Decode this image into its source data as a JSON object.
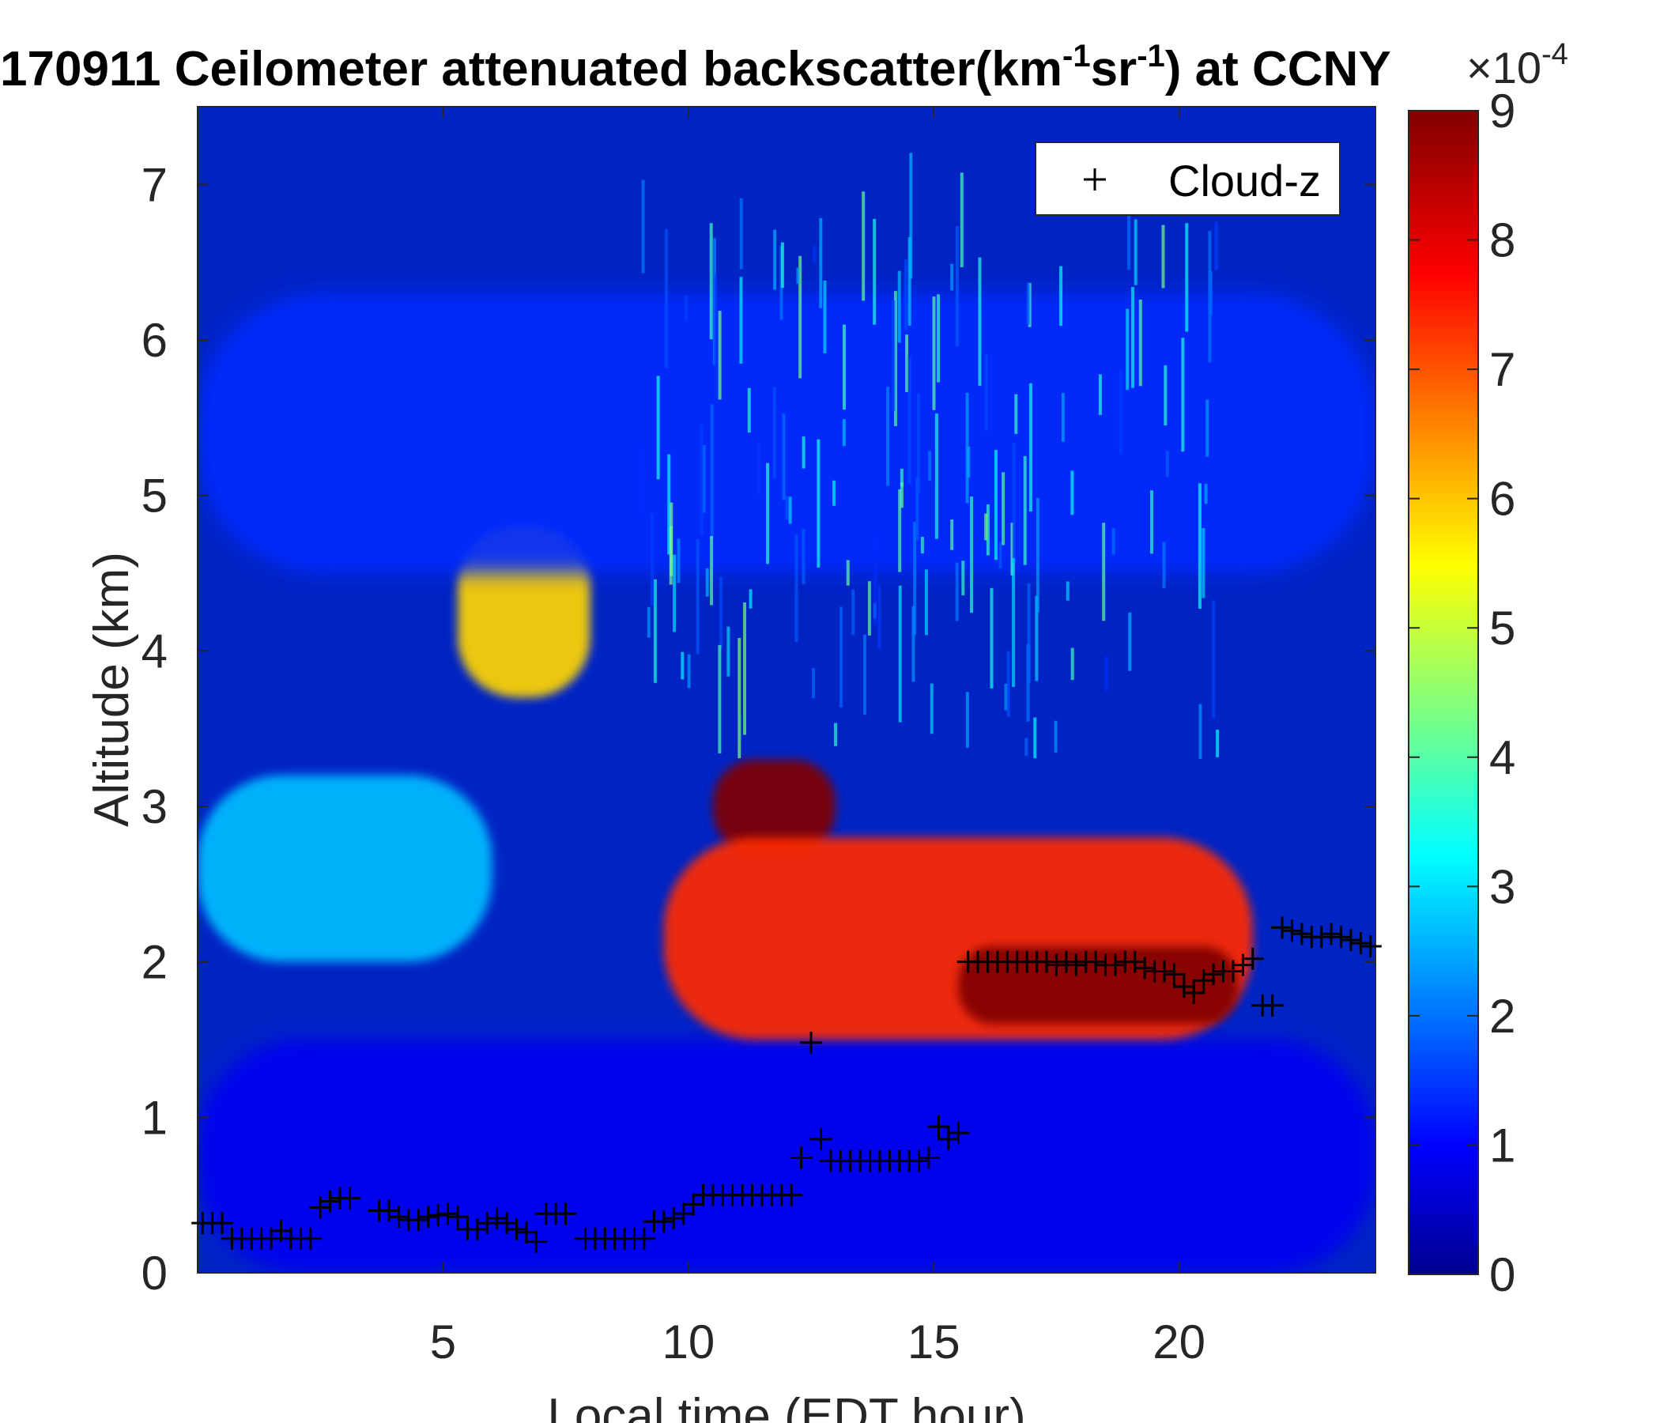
{
  "chart_data": {
    "type": "heatmap",
    "title": "170911 Ceilometer attenuated backscatter(km",
    "title_sup1": "-1",
    "title_mid": "sr",
    "title_sup2": "-1",
    "title_end": ") at CCNY",
    "xlabel": "Local time (EDT hour)",
    "ylabel": "Altitude (km)",
    "xlim": [
      0,
      24
    ],
    "ylim": [
      0,
      7.5
    ],
    "xticks": [
      5,
      10,
      15,
      20
    ],
    "yticks": [
      0,
      1,
      2,
      3,
      4,
      5,
      6,
      7
    ],
    "colorbar": {
      "colormap": "jet",
      "range": [
        0,
        9
      ],
      "ticks": [
        0,
        1,
        2,
        3,
        4,
        5,
        6,
        7,
        8,
        9
      ],
      "exponent_base": "×10",
      "exponent_power": "-4"
    },
    "legend": {
      "placement": "top-right",
      "entries": [
        {
          "marker": "+",
          "label": "Cloud-z",
          "color": "#000000"
        }
      ]
    },
    "features": [
      {
        "name": "aerosol layer",
        "x_range": [
          0,
          24
        ],
        "alt_km": [
          0,
          1.5
        ],
        "value": 1.0
      },
      {
        "name": "elevated layer",
        "x_range": [
          0,
          6
        ],
        "alt_km": [
          2.0,
          3.2
        ],
        "value": 2.8
      },
      {
        "name": "thick cloud",
        "x_range": [
          10.5,
          13
        ],
        "alt_km": [
          2.7,
          3.3
        ],
        "value": 9.0
      },
      {
        "name": "cloud band",
        "x_range": [
          9.5,
          21.5
        ],
        "alt_km": [
          1.5,
          2.8
        ],
        "value": 7.5
      },
      {
        "name": "cloud core",
        "x_range": [
          15.5,
          21.2
        ],
        "alt_km": [
          1.6,
          2.1
        ],
        "value": 9.0
      },
      {
        "name": "mid-level cloud",
        "x_range": [
          5.3,
          8.0
        ],
        "alt_km": [
          3.7,
          4.8
        ],
        "value": 6.0
      },
      {
        "name": "upper layer",
        "x_range": [
          0,
          24
        ],
        "alt_km": [
          4.5,
          6.3
        ],
        "value": 1.5
      }
    ],
    "series": [
      {
        "name": "Cloud-z",
        "marker": "+",
        "points": [
          [
            0.1,
            0.32
          ],
          [
            0.3,
            0.32
          ],
          [
            0.5,
            0.32
          ],
          [
            0.7,
            0.22
          ],
          [
            0.9,
            0.22
          ],
          [
            1.1,
            0.22
          ],
          [
            1.3,
            0.22
          ],
          [
            1.5,
            0.22
          ],
          [
            1.7,
            0.27
          ],
          [
            1.9,
            0.22
          ],
          [
            2.1,
            0.22
          ],
          [
            2.3,
            0.22
          ],
          [
            2.5,
            0.42
          ],
          [
            2.7,
            0.46
          ],
          [
            2.9,
            0.48
          ],
          [
            3.1,
            0.48
          ],
          [
            3.7,
            0.4
          ],
          [
            3.9,
            0.4
          ],
          [
            4.1,
            0.36
          ],
          [
            4.3,
            0.34
          ],
          [
            4.5,
            0.34
          ],
          [
            4.7,
            0.36
          ],
          [
            4.9,
            0.37
          ],
          [
            5.1,
            0.38
          ],
          [
            5.3,
            0.36
          ],
          [
            5.5,
            0.28
          ],
          [
            5.7,
            0.28
          ],
          [
            5.9,
            0.32
          ],
          [
            6.1,
            0.35
          ],
          [
            6.3,
            0.32
          ],
          [
            6.5,
            0.28
          ],
          [
            6.7,
            0.26
          ],
          [
            6.9,
            0.2
          ],
          [
            7.1,
            0.38
          ],
          [
            7.3,
            0.38
          ],
          [
            7.5,
            0.38
          ],
          [
            7.9,
            0.22
          ],
          [
            8.1,
            0.22
          ],
          [
            8.3,
            0.22
          ],
          [
            8.5,
            0.22
          ],
          [
            8.7,
            0.22
          ],
          [
            8.9,
            0.22
          ],
          [
            9.1,
            0.22
          ],
          [
            9.3,
            0.33
          ],
          [
            9.5,
            0.33
          ],
          [
            9.7,
            0.35
          ],
          [
            9.9,
            0.38
          ],
          [
            10.1,
            0.44
          ],
          [
            10.3,
            0.5
          ],
          [
            10.5,
            0.5
          ],
          [
            10.7,
            0.5
          ],
          [
            10.9,
            0.5
          ],
          [
            11.1,
            0.5
          ],
          [
            11.3,
            0.5
          ],
          [
            11.5,
            0.5
          ],
          [
            11.7,
            0.5
          ],
          [
            11.9,
            0.5
          ],
          [
            12.1,
            0.5
          ],
          [
            12.3,
            0.74
          ],
          [
            12.5,
            1.48
          ],
          [
            12.7,
            0.86
          ],
          [
            12.9,
            0.72
          ],
          [
            13.1,
            0.72
          ],
          [
            13.3,
            0.72
          ],
          [
            13.5,
            0.72
          ],
          [
            13.7,
            0.72
          ],
          [
            13.9,
            0.72
          ],
          [
            14.1,
            0.72
          ],
          [
            14.3,
            0.72
          ],
          [
            14.5,
            0.72
          ],
          [
            14.7,
            0.72
          ],
          [
            14.9,
            0.74
          ],
          [
            15.1,
            0.94
          ],
          [
            15.3,
            0.86
          ],
          [
            15.5,
            0.9
          ],
          [
            15.7,
            2.0
          ],
          [
            15.9,
            2.0
          ],
          [
            16.1,
            2.0
          ],
          [
            16.3,
            2.0
          ],
          [
            16.5,
            2.0
          ],
          [
            16.7,
            2.0
          ],
          [
            16.9,
            2.0
          ],
          [
            17.1,
            2.0
          ],
          [
            17.3,
            2.0
          ],
          [
            17.5,
            1.98
          ],
          [
            17.7,
            2.0
          ],
          [
            17.9,
            1.98
          ],
          [
            18.1,
            2.0
          ],
          [
            18.3,
            2.0
          ],
          [
            18.5,
            1.98
          ],
          [
            18.7,
            1.98
          ],
          [
            18.9,
            2.0
          ],
          [
            19.1,
            2.0
          ],
          [
            19.3,
            1.96
          ],
          [
            19.5,
            1.94
          ],
          [
            19.7,
            1.94
          ],
          [
            19.9,
            1.92
          ],
          [
            20.1,
            1.84
          ],
          [
            20.3,
            1.8
          ],
          [
            20.5,
            1.88
          ],
          [
            20.7,
            1.92
          ],
          [
            20.9,
            1.94
          ],
          [
            21.1,
            1.94
          ],
          [
            21.3,
            1.98
          ],
          [
            21.5,
            2.02
          ],
          [
            21.7,
            1.72
          ],
          [
            21.9,
            1.72
          ],
          [
            22.1,
            2.22
          ],
          [
            22.3,
            2.2
          ],
          [
            22.5,
            2.18
          ],
          [
            22.7,
            2.16
          ],
          [
            22.9,
            2.16
          ],
          [
            23.1,
            2.18
          ],
          [
            23.3,
            2.16
          ],
          [
            23.5,
            2.14
          ],
          [
            23.7,
            2.12
          ],
          [
            23.9,
            2.1
          ]
        ]
      }
    ]
  }
}
